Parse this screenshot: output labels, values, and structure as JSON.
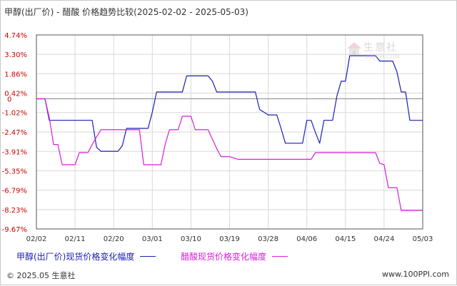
{
  "title": "甲醇(出厂价) - 醋酸 价格趋势比较(2025-02-02 - 2025-05-03)",
  "watermark": {
    "text": "生意社",
    "sub": "100PPI.COM"
  },
  "footer": {
    "copyright": "© 2025.05 生意社",
    "site": "www.100PPI.com"
  },
  "colors": {
    "series1": "#1c1cb8",
    "series2": "#d81ed8",
    "grid": "#d8d8d8",
    "axis": "#555555",
    "zero_line": "#888888"
  },
  "chart_data": {
    "type": "line",
    "title": "甲醇(出厂价) - 醋酸 价格趋势比较(2025-02-02 - 2025-05-03)",
    "xlabel": "",
    "ylabel": "",
    "x_ticks": [
      "02/02",
      "02/11",
      "02/20",
      "03/01",
      "03/10",
      "03/19",
      "03/28",
      "04/06",
      "04/15",
      "04/24",
      "05/03"
    ],
    "y_ticks": [
      "4.74%",
      "3.30%",
      "1.86%",
      "0.42%",
      "-1.02%",
      "-2.47%",
      "-3.91%",
      "-5.35%",
      "-6.79%",
      "-8.23%",
      "-9.67%"
    ],
    "y_tick_values": [
      4.74,
      3.3,
      1.86,
      0.42,
      -1.02,
      -2.47,
      -3.91,
      -5.35,
      -6.79,
      -8.23,
      -9.67
    ],
    "zero_label": "0",
    "ylim": [
      -9.67,
      4.74
    ],
    "x_range_days": [
      0,
      90
    ],
    "grid": true,
    "legend_position": "bottom",
    "series": [
      {
        "name": "甲醇(出厂价)现货价格变化幅度",
        "points": [
          [
            0,
            0
          ],
          [
            2,
            0
          ],
          [
            3,
            -1.6
          ],
          [
            13,
            -1.6
          ],
          [
            14,
            -3.6
          ],
          [
            15,
            -3.9
          ],
          [
            19,
            -3.9
          ],
          [
            20,
            -3.5
          ],
          [
            21,
            -2.2
          ],
          [
            26,
            -2.2
          ],
          [
            27,
            -1.0
          ],
          [
            28,
            0.5
          ],
          [
            34,
            0.5
          ],
          [
            35,
            1.7
          ],
          [
            40,
            1.7
          ],
          [
            41,
            1.3
          ],
          [
            42,
            0.5
          ],
          [
            51,
            0.5
          ],
          [
            52,
            -0.8
          ],
          [
            53,
            -1.0
          ],
          [
            54,
            -1.2
          ],
          [
            56,
            -1.2
          ],
          [
            57,
            -2.2
          ],
          [
            58,
            -3.3
          ],
          [
            62,
            -3.3
          ],
          [
            63,
            -1.6
          ],
          [
            64,
            -1.6
          ],
          [
            65,
            -2.5
          ],
          [
            66,
            -3.3
          ],
          [
            67,
            -1.6
          ],
          [
            69,
            -1.6
          ],
          [
            70,
            0.2
          ],
          [
            71,
            1.3
          ],
          [
            72,
            1.3
          ],
          [
            73,
            3.2
          ],
          [
            79,
            3.2
          ],
          [
            80,
            2.8
          ],
          [
            83,
            2.8
          ],
          [
            84,
            2.0
          ],
          [
            85,
            0.5
          ],
          [
            86,
            0.5
          ],
          [
            87,
            -1.6
          ],
          [
            90,
            -1.6
          ]
        ]
      },
      {
        "name": "醋酸现货价格变化幅度",
        "points": [
          [
            0,
            0
          ],
          [
            2,
            0
          ],
          [
            3,
            -1.4
          ],
          [
            4,
            -3.4
          ],
          [
            5,
            -3.4
          ],
          [
            6,
            -4.9
          ],
          [
            9,
            -4.9
          ],
          [
            10,
            -4.0
          ],
          [
            12,
            -4.0
          ],
          [
            13,
            -3.4
          ],
          [
            15,
            -2.3
          ],
          [
            24,
            -2.3
          ],
          [
            25,
            -4.9
          ],
          [
            29,
            -4.9
          ],
          [
            30,
            -3.4
          ],
          [
            31,
            -2.3
          ],
          [
            33,
            -2.3
          ],
          [
            34,
            -1.3
          ],
          [
            36,
            -1.3
          ],
          [
            37,
            -2.3
          ],
          [
            40,
            -2.3
          ],
          [
            42,
            -3.7
          ],
          [
            43,
            -4.3
          ],
          [
            45,
            -4.3
          ],
          [
            47,
            -4.5
          ],
          [
            64,
            -4.5
          ],
          [
            65,
            -4.0
          ],
          [
            79,
            -4.0
          ],
          [
            80,
            -4.8
          ],
          [
            81,
            -4.9
          ],
          [
            82,
            -6.6
          ],
          [
            84,
            -6.6
          ],
          [
            85,
            -8.3
          ],
          [
            90,
            -8.3
          ]
        ]
      }
    ]
  }
}
